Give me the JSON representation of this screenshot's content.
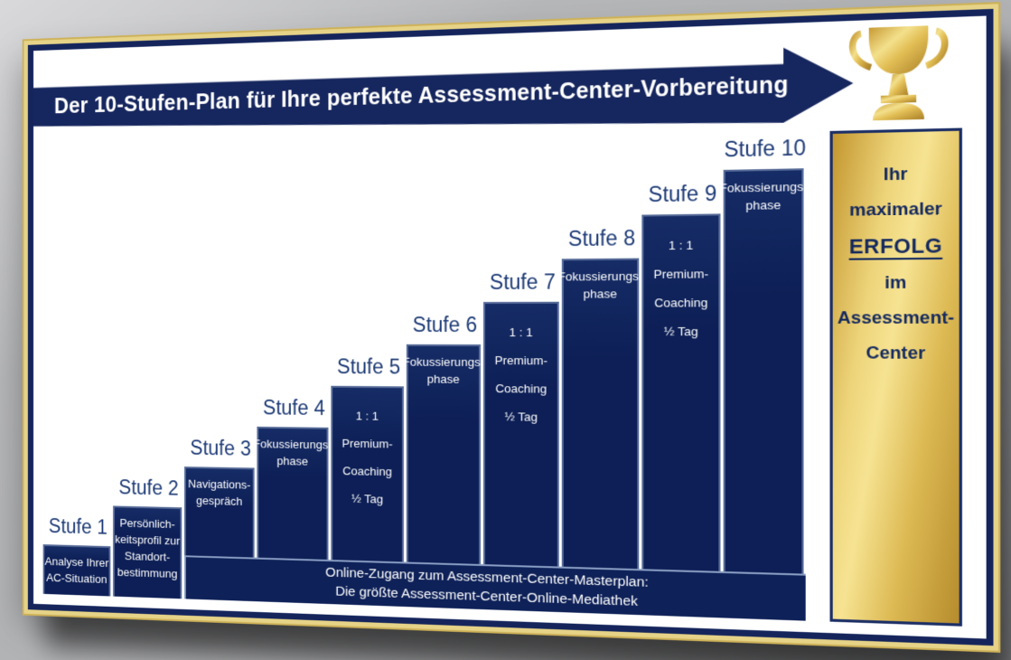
{
  "title_banner": {
    "text": "Der 10-Stufen-Plan für Ihre perfekte Assessment-Center-Vorbereitung"
  },
  "steps": [
    {
      "label": "Stufe 1",
      "lines": [
        "Analyse Ihrer",
        "AC-Situation"
      ]
    },
    {
      "label": "Stufe 2",
      "lines": [
        "Persönlich-",
        "keitsprofil zur",
        "Standort-",
        "bestimmung"
      ]
    },
    {
      "label": "Stufe 3",
      "lines": [
        "Navigations-",
        "gespräch"
      ]
    },
    {
      "label": "Stufe 4",
      "lines": [
        "Fokussierungs-",
        "phase"
      ]
    },
    {
      "label": "Stufe 5",
      "lines": [
        "1 : 1",
        "Premium-",
        "Coaching",
        "½ Tag"
      ],
      "premium": true
    },
    {
      "label": "Stufe 6",
      "lines": [
        "Fokussierungs-",
        "phase"
      ]
    },
    {
      "label": "Stufe 7",
      "lines": [
        "1 : 1",
        "Premium-",
        "Coaching",
        "½ Tag"
      ],
      "premium": true
    },
    {
      "label": "Stufe 8",
      "lines": [
        "Fokussierungs-",
        "phase"
      ]
    },
    {
      "label": "Stufe 9",
      "lines": [
        "1 : 1",
        "Premium-",
        "Coaching",
        "½ Tag"
      ],
      "premium": true
    },
    {
      "label": "Stufe 10",
      "lines": [
        "Fokussierungs-",
        "phase"
      ]
    }
  ],
  "goal_column": {
    "lines": [
      "Ihr",
      "maximaler",
      "ERFOLG",
      "im",
      "Assessment-",
      "Center"
    ],
    "emphasis": "ERFOLG"
  },
  "bottom_bar": {
    "line1": "Online-Zugang zum Assessment-Center-Masterplan:",
    "line2": "Die größte Assessment-Center-Online-Mediathek"
  },
  "icons": {
    "trophy": "trophy-icon",
    "arrow": "arrow-right-banner"
  },
  "colors": {
    "navy": "#0d1f56",
    "banner_navy": "#16265e",
    "frame_navy": "#15255c",
    "frame_gold": "#e6d387",
    "label_navy": "#1d3a76",
    "gold_light": "#f6e392",
    "gold_dark": "#b68c2c",
    "separator": "#96aad0",
    "text_white": "#ffffff"
  }
}
